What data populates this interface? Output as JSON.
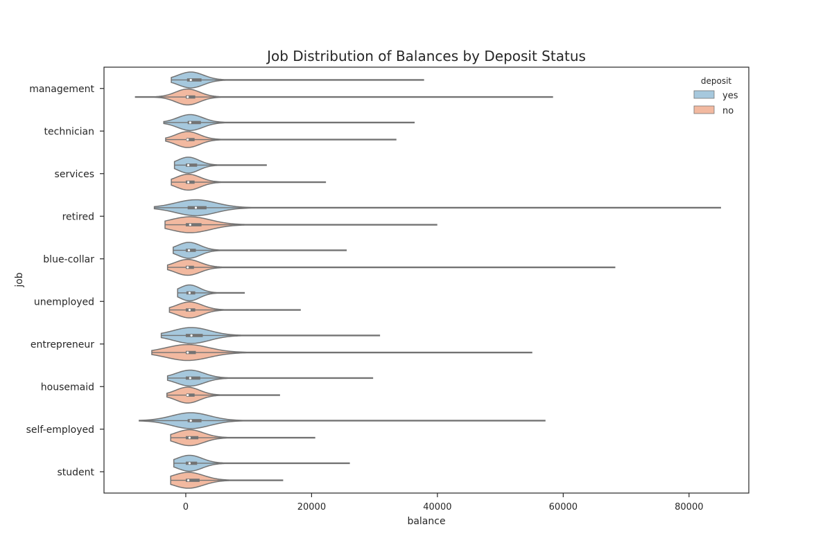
{
  "chart_data": {
    "type": "violin",
    "orientation": "horizontal",
    "title": "Job Distribution of Balances by Deposit Status",
    "xlabel": "balance",
    "ylabel": "job",
    "xlim": [
      -13000,
      89500
    ],
    "x_ticks": [
      0,
      20000,
      40000,
      60000,
      80000
    ],
    "x_tick_labels": [
      "0",
      "20000",
      "40000",
      "60000",
      "80000"
    ],
    "categories": [
      "management",
      "technician",
      "services",
      "retired",
      "blue-collar",
      "unemployed",
      "entrepreneur",
      "housemaid",
      "self-employed",
      "student"
    ],
    "legend": {
      "title": "deposit",
      "position": "top-right",
      "entries": [
        "yes",
        "no"
      ]
    },
    "colors": {
      "yes": "#a6c8dd",
      "no": "#f2b9a0",
      "outline": "#737373"
    },
    "grid": false,
    "series": [
      {
        "name": "yes",
        "min": [
          -2300,
          -3500,
          -1800,
          -5000,
          -2000,
          -1300,
          -3900,
          -2900,
          -7400,
          -1900
        ],
        "max": [
          37800,
          36300,
          12800,
          85000,
          25500,
          9300,
          30800,
          29700,
          57100,
          26000
        ],
        "q1": [
          200,
          300,
          0,
          300,
          0,
          100,
          0,
          0,
          300,
          0
        ],
        "median": [
          800,
          700,
          400,
          1600,
          500,
          600,
          900,
          700,
          800,
          600
        ],
        "q3": [
          2500,
          2400,
          1800,
          3300,
          1600,
          1500,
          2700,
          2300,
          2500,
          1800
        ],
        "spread": [
          2000,
          2000,
          1700,
          3200,
          1800,
          1600,
          2900,
          2200,
          3000,
          2000
        ]
      },
      {
        "name": "no",
        "min": [
          -8000,
          -3200,
          -2300,
          -3300,
          -2900,
          -2600,
          -5400,
          -3000,
          -2400,
          -2400
        ],
        "max": [
          58300,
          33400,
          22200,
          39900,
          68200,
          18200,
          55000,
          14900,
          20500,
          15400
        ],
        "q1": [
          0,
          100,
          0,
          0,
          0,
          0,
          0,
          100,
          0,
          0
        ],
        "median": [
          300,
          300,
          400,
          700,
          300,
          600,
          300,
          300,
          600,
          400
        ],
        "q3": [
          1500,
          1400,
          1400,
          2500,
          1300,
          1500,
          1600,
          1400,
          2000,
          2200
        ],
        "spread": [
          1900,
          1900,
          1900,
          3200,
          2000,
          2000,
          3400,
          1900,
          2200,
          2400
        ]
      }
    ]
  }
}
